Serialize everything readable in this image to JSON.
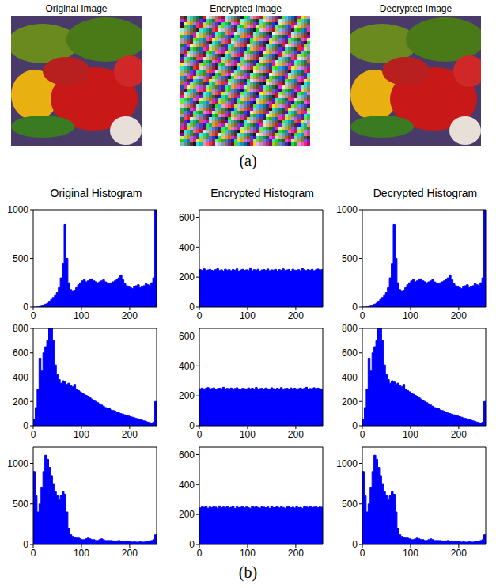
{
  "figure": {
    "images": [
      {
        "title": "Original Image"
      },
      {
        "title": "Encrypted Image"
      },
      {
        "title": "Decrypted Image"
      }
    ],
    "panel_labels": [
      "(a)",
      "(b)"
    ]
  },
  "chart_data": [
    {
      "type": "histogram",
      "title": "Original Histogram",
      "bins": [
        0,
        4,
        8,
        12,
        16,
        20,
        24,
        28,
        32,
        36,
        40,
        44,
        48,
        52,
        56,
        60,
        64,
        68,
        72,
        76,
        80,
        84,
        88,
        92,
        96,
        100,
        104,
        108,
        112,
        116,
        120,
        124,
        128,
        132,
        136,
        140,
        144,
        148,
        152,
        156,
        160,
        164,
        168,
        172,
        176,
        180,
        184,
        188,
        192,
        196,
        200,
        204,
        208,
        212,
        216,
        220,
        224,
        228,
        232,
        236,
        240,
        244,
        248,
        252,
        256
      ],
      "counts": [
        0,
        0,
        2,
        5,
        10,
        20,
        30,
        40,
        60,
        80,
        100,
        120,
        150,
        200,
        300,
        450,
        850,
        500,
        250,
        180,
        160,
        170,
        200,
        230,
        250,
        270,
        280,
        260,
        270,
        280,
        290,
        270,
        260,
        250,
        260,
        270,
        280,
        260,
        250,
        240,
        250,
        260,
        270,
        280,
        300,
        330,
        280,
        240,
        220,
        210,
        200,
        190,
        210,
        220,
        230,
        200,
        210,
        220,
        240,
        230,
        220,
        250,
        300,
        1000
      ],
      "color": "#0000ff",
      "xlim": [
        0,
        256
      ],
      "xticks": [
        0,
        100,
        200
      ],
      "ylim": [
        0,
        1000
      ],
      "yticks": [
        0,
        500,
        1000
      ],
      "grid": false
    },
    {
      "type": "histogram",
      "title": "Encrypted Histogram",
      "bins": [
        0,
        4,
        8,
        12,
        16,
        20,
        24,
        28,
        32,
        36,
        40,
        44,
        48,
        52,
        56,
        60,
        64,
        68,
        72,
        76,
        80,
        84,
        88,
        92,
        96,
        100,
        104,
        108,
        112,
        116,
        120,
        124,
        128,
        132,
        136,
        140,
        144,
        148,
        152,
        156,
        160,
        164,
        168,
        172,
        176,
        180,
        184,
        188,
        192,
        196,
        200,
        204,
        208,
        212,
        216,
        220,
        224,
        228,
        232,
        236,
        240,
        244,
        248,
        252,
        256
      ],
      "counts": [
        250,
        245,
        255,
        240,
        248,
        252,
        246,
        238,
        250,
        256,
        244,
        249,
        241,
        253,
        247,
        250,
        243,
        251,
        246,
        255,
        240,
        248,
        252,
        245,
        249,
        244,
        257,
        242,
        250,
        246,
        253,
        239,
        248,
        251,
        245,
        254,
        243,
        249,
        247,
        252,
        241,
        250,
        246,
        255,
        244,
        248,
        251,
        240,
        253,
        247,
        245,
        250,
        242,
        256,
        249,
        244,
        251,
        246,
        252,
        243,
        248,
        254,
        247,
        250
      ],
      "color": "#0000ff",
      "xlim": [
        0,
        256
      ],
      "xticks": [
        0,
        100,
        200
      ],
      "ylim": [
        0,
        650
      ],
      "yticks": [
        0,
        200,
        400,
        600
      ],
      "grid": false
    },
    {
      "type": "histogram",
      "title": "Decrypted Histogram",
      "bins": [
        0,
        4,
        8,
        12,
        16,
        20,
        24,
        28,
        32,
        36,
        40,
        44,
        48,
        52,
        56,
        60,
        64,
        68,
        72,
        76,
        80,
        84,
        88,
        92,
        96,
        100,
        104,
        108,
        112,
        116,
        120,
        124,
        128,
        132,
        136,
        140,
        144,
        148,
        152,
        156,
        160,
        164,
        168,
        172,
        176,
        180,
        184,
        188,
        192,
        196,
        200,
        204,
        208,
        212,
        216,
        220,
        224,
        228,
        232,
        236,
        240,
        244,
        248,
        252,
        256
      ],
      "counts": [
        0,
        0,
        2,
        5,
        10,
        20,
        30,
        40,
        60,
        80,
        100,
        120,
        150,
        200,
        300,
        450,
        850,
        500,
        250,
        180,
        160,
        170,
        200,
        230,
        250,
        270,
        280,
        260,
        270,
        280,
        290,
        270,
        260,
        250,
        260,
        270,
        280,
        260,
        250,
        240,
        250,
        260,
        270,
        280,
        300,
        330,
        280,
        240,
        220,
        210,
        200,
        190,
        210,
        220,
        230,
        200,
        210,
        220,
        240,
        230,
        220,
        250,
        300,
        1000
      ],
      "color": "#0000ff",
      "xlim": [
        0,
        256
      ],
      "xticks": [
        0,
        100,
        200
      ],
      "ylim": [
        0,
        1000
      ],
      "yticks": [
        0,
        500,
        1000
      ],
      "grid": false
    },
    {
      "type": "histogram",
      "bins": [
        0,
        4,
        8,
        12,
        16,
        20,
        24,
        28,
        32,
        36,
        40,
        44,
        48,
        52,
        56,
        60,
        64,
        68,
        72,
        76,
        80,
        84,
        88,
        92,
        96,
        100,
        104,
        108,
        112,
        116,
        120,
        124,
        128,
        132,
        136,
        140,
        144,
        148,
        152,
        156,
        160,
        164,
        168,
        172,
        176,
        180,
        184,
        188,
        192,
        196,
        200,
        204,
        208,
        212,
        216,
        220,
        224,
        228,
        232,
        236,
        240,
        244,
        248,
        252,
        256
      ],
      "counts": [
        50,
        150,
        300,
        550,
        450,
        600,
        650,
        700,
        800,
        850,
        700,
        500,
        420,
        380,
        350,
        370,
        360,
        340,
        350,
        330,
        320,
        340,
        300,
        290,
        280,
        270,
        260,
        250,
        240,
        230,
        220,
        210,
        200,
        190,
        180,
        170,
        160,
        150,
        145,
        140,
        130,
        125,
        120,
        110,
        105,
        100,
        95,
        90,
        85,
        80,
        75,
        70,
        65,
        60,
        55,
        50,
        45,
        40,
        35,
        30,
        25,
        20,
        30,
        200
      ],
      "color": "#0000ff",
      "xlim": [
        0,
        256
      ],
      "xticks": [
        0,
        100,
        200
      ],
      "ylim": [
        0,
        800
      ],
      "yticks": [
        0,
        200,
        400,
        600,
        800
      ],
      "grid": false
    },
    {
      "type": "histogram",
      "bins": [
        0,
        4,
        8,
        12,
        16,
        20,
        24,
        28,
        32,
        36,
        40,
        44,
        48,
        52,
        56,
        60,
        64,
        68,
        72,
        76,
        80,
        84,
        88,
        92,
        96,
        100,
        104,
        108,
        112,
        116,
        120,
        124,
        128,
        132,
        136,
        140,
        144,
        148,
        152,
        156,
        160,
        164,
        168,
        172,
        176,
        180,
        184,
        188,
        192,
        196,
        200,
        204,
        208,
        212,
        216,
        220,
        224,
        228,
        232,
        236,
        240,
        244,
        248,
        252,
        256
      ],
      "counts": [
        247,
        252,
        241,
        250,
        255,
        244,
        249,
        253,
        240,
        248,
        251,
        246,
        257,
        243,
        250,
        245,
        252,
        239,
        249,
        254,
        246,
        241,
        250,
        248,
        244,
        253,
        247,
        251,
        242,
        256,
        245,
        249,
        250,
        243,
        252,
        247,
        240,
        254,
        248,
        245,
        251,
        246,
        255,
        242,
        249,
        250,
        244,
        253,
        246,
        251,
        241,
        248,
        252,
        245,
        250,
        257,
        243,
        249,
        246,
        254,
        240,
        251,
        248,
        245
      ],
      "color": "#0000ff",
      "xlim": [
        0,
        256
      ],
      "xticks": [
        0,
        100,
        200
      ],
      "ylim": [
        0,
        650
      ],
      "yticks": [
        0,
        200,
        400,
        600
      ],
      "grid": false
    },
    {
      "type": "histogram",
      "bins": [
        0,
        4,
        8,
        12,
        16,
        20,
        24,
        28,
        32,
        36,
        40,
        44,
        48,
        52,
        56,
        60,
        64,
        68,
        72,
        76,
        80,
        84,
        88,
        92,
        96,
        100,
        104,
        108,
        112,
        116,
        120,
        124,
        128,
        132,
        136,
        140,
        144,
        148,
        152,
        156,
        160,
        164,
        168,
        172,
        176,
        180,
        184,
        188,
        192,
        196,
        200,
        204,
        208,
        212,
        216,
        220,
        224,
        228,
        232,
        236,
        240,
        244,
        248,
        252,
        256
      ],
      "counts": [
        50,
        150,
        300,
        550,
        450,
        600,
        650,
        700,
        800,
        850,
        700,
        500,
        420,
        380,
        350,
        370,
        360,
        340,
        350,
        330,
        320,
        340,
        300,
        290,
        280,
        270,
        260,
        250,
        240,
        230,
        220,
        210,
        200,
        190,
        180,
        170,
        160,
        150,
        145,
        140,
        130,
        125,
        120,
        110,
        105,
        100,
        95,
        90,
        85,
        80,
        75,
        70,
        65,
        60,
        55,
        50,
        45,
        40,
        35,
        30,
        25,
        20,
        30,
        200
      ],
      "color": "#0000ff",
      "xlim": [
        0,
        256
      ],
      "xticks": [
        0,
        100,
        200
      ],
      "ylim": [
        0,
        800
      ],
      "yticks": [
        0,
        200,
        400,
        600,
        800
      ],
      "grid": false
    },
    {
      "type": "histogram",
      "bins": [
        0,
        4,
        8,
        12,
        16,
        20,
        24,
        28,
        32,
        36,
        40,
        44,
        48,
        52,
        56,
        60,
        64,
        68,
        72,
        76,
        80,
        84,
        88,
        92,
        96,
        100,
        104,
        108,
        112,
        116,
        120,
        124,
        128,
        132,
        136,
        140,
        144,
        148,
        152,
        156,
        160,
        164,
        168,
        172,
        176,
        180,
        184,
        188,
        192,
        196,
        200,
        204,
        208,
        212,
        216,
        220,
        224,
        228,
        232,
        236,
        240,
        244,
        248,
        252,
        256
      ],
      "counts": [
        900,
        600,
        400,
        500,
        700,
        900,
        1100,
        1050,
        950,
        850,
        750,
        650,
        600,
        550,
        600,
        650,
        620,
        400,
        200,
        120,
        100,
        90,
        80,
        80,
        70,
        60,
        60,
        70,
        80,
        70,
        60,
        60,
        50,
        50,
        60,
        70,
        60,
        50,
        50,
        50,
        50,
        45,
        40,
        45,
        50,
        40,
        40,
        35,
        40,
        40,
        35,
        30,
        35,
        30,
        30,
        35,
        30,
        30,
        35,
        40,
        40,
        50,
        60,
        120
      ],
      "color": "#0000ff",
      "xlim": [
        0,
        256
      ],
      "xticks": [
        0,
        100,
        200
      ],
      "ylim": [
        0,
        1200
      ],
      "yticks": [
        0,
        500,
        1000
      ],
      "grid": false
    },
    {
      "type": "histogram",
      "bins": [
        0,
        4,
        8,
        12,
        16,
        20,
        24,
        28,
        32,
        36,
        40,
        44,
        48,
        52,
        56,
        60,
        64,
        68,
        72,
        76,
        80,
        84,
        88,
        92,
        96,
        100,
        104,
        108,
        112,
        116,
        120,
        124,
        128,
        132,
        136,
        140,
        144,
        148,
        152,
        156,
        160,
        164,
        168,
        172,
        176,
        180,
        184,
        188,
        192,
        196,
        200,
        204,
        208,
        212,
        216,
        220,
        224,
        228,
        232,
        236,
        240,
        244,
        248,
        252,
        256
      ],
      "counts": [
        244,
        251,
        248,
        255,
        242,
        250,
        246,
        253,
        249,
        241,
        257,
        245,
        250,
        247,
        252,
        243,
        248,
        254,
        240,
        251,
        246,
        249,
        253,
        244,
        250,
        245,
        242,
        256,
        248,
        251,
        247,
        243,
        252,
        249,
        245,
        250,
        240,
        254,
        246,
        248,
        253,
        244,
        251,
        247,
        242,
        250,
        255,
        245,
        249,
        243,
        252,
        246,
        248,
        241,
        251,
        250,
        247,
        253,
        244,
        249,
        256,
        245,
        250,
        248
      ],
      "color": "#0000ff",
      "xlim": [
        0,
        256
      ],
      "xticks": [
        0,
        100,
        200
      ],
      "ylim": [
        0,
        650
      ],
      "yticks": [
        0,
        200,
        400,
        600
      ],
      "grid": false
    },
    {
      "type": "histogram",
      "bins": [
        0,
        4,
        8,
        12,
        16,
        20,
        24,
        28,
        32,
        36,
        40,
        44,
        48,
        52,
        56,
        60,
        64,
        68,
        72,
        76,
        80,
        84,
        88,
        92,
        96,
        100,
        104,
        108,
        112,
        116,
        120,
        124,
        128,
        132,
        136,
        140,
        144,
        148,
        152,
        156,
        160,
        164,
        168,
        172,
        176,
        180,
        184,
        188,
        192,
        196,
        200,
        204,
        208,
        212,
        216,
        220,
        224,
        228,
        232,
        236,
        240,
        244,
        248,
        252,
        256
      ],
      "counts": [
        900,
        600,
        400,
        500,
        700,
        900,
        1100,
        1050,
        950,
        850,
        750,
        650,
        600,
        550,
        600,
        650,
        620,
        400,
        200,
        120,
        100,
        90,
        80,
        80,
        70,
        60,
        60,
        70,
        80,
        70,
        60,
        60,
        50,
        50,
        60,
        70,
        60,
        50,
        50,
        50,
        50,
        45,
        40,
        45,
        50,
        40,
        40,
        35,
        40,
        40,
        35,
        30,
        35,
        30,
        30,
        35,
        30,
        30,
        35,
        40,
        40,
        50,
        60,
        120
      ],
      "color": "#0000ff",
      "xlim": [
        0,
        256
      ],
      "xticks": [
        0,
        100,
        200
      ],
      "ylim": [
        0,
        1200
      ],
      "yticks": [
        0,
        500,
        1000
      ],
      "grid": false
    }
  ]
}
